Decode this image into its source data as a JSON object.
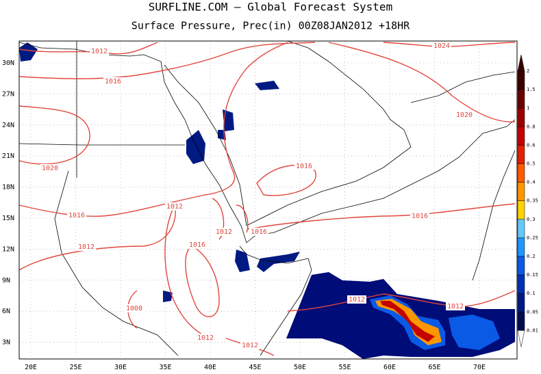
{
  "header": {
    "title": "SURFLINE.COM — Global Forecast System",
    "subtitle": "Surface Pressure,  Prec(in) 00Z08JAN2012 +18HR"
  },
  "map": {
    "lat_labels": [
      "30N",
      "27N",
      "24N",
      "21N",
      "18N",
      "15N",
      "12N",
      "9N",
      "6N",
      "3N"
    ],
    "lon_labels": [
      "20E",
      "25E",
      "30E",
      "35E",
      "40E",
      "45E",
      "50E",
      "55E",
      "60E",
      "65E",
      "70E"
    ],
    "isobar_labels": [
      "1012",
      "1016",
      "1020",
      "1016",
      "1012",
      "1012",
      "1012",
      "1016",
      "1016",
      "1008",
      "1012",
      "1012",
      "1016",
      "1016",
      "1020",
      "1024",
      "1012",
      "1012"
    ],
    "isobar_color": "#e0463c"
  },
  "colorbar": {
    "labels": [
      "2",
      "1.5",
      "1",
      "0.8",
      "0.6",
      "0.5",
      "0.4",
      "0.35",
      "0.3",
      "0.25",
      "0.2",
      "0.15",
      "0.1",
      "0.05",
      "0.01"
    ],
    "colors": [
      "#3a0000",
      "#6a0000",
      "#9a0000",
      "#c40000",
      "#e02000",
      "#ff5a00",
      "#ff9600",
      "#ffd200",
      "#64c8ff",
      "#1e96ff",
      "#0a5ae6",
      "#0030b4",
      "#001a82",
      "#000c50",
      "#ffffff"
    ]
  }
}
